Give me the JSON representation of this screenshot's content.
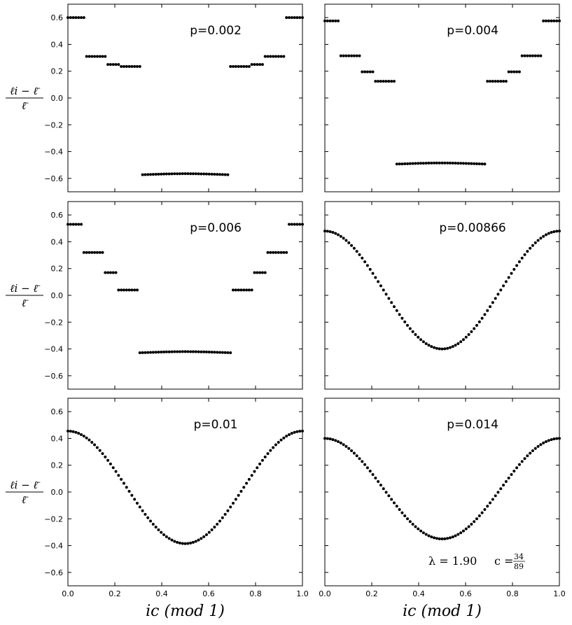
{
  "chart_data": {
    "type": "scatter",
    "layout": "3x2",
    "xlabel": "ic (mod 1)",
    "ylabel": "(ℓ_i − ℓ̄) / ℓ̄",
    "ylabel_parts": {
      "num": "ℓi − ℓ̄",
      "den": "ℓ̄"
    },
    "xlim": [
      0,
      1
    ],
    "ylim": [
      -0.7,
      0.7
    ],
    "x_ticks": [
      "0.0",
      "0.2",
      "0.4",
      "0.6",
      "0.8",
      "1.0"
    ],
    "y_ticks": [
      "0.6",
      "0.4",
      "0.2",
      "0.0",
      "−0.2",
      "−0.4",
      "−0.6"
    ],
    "annotation": {
      "lambda": "λ = 1.90",
      "c_label": "c =",
      "c_num": "34",
      "c_den": "89"
    },
    "panels": [
      {
        "label": "p=0.002",
        "levels": [
          {
            "x0": 0.0,
            "x1": 0.07,
            "y": 0.6
          },
          {
            "x0": 0.08,
            "x1": 0.16,
            "y": 0.31
          },
          {
            "x0": 0.17,
            "x1": 0.22,
            "y": 0.25
          },
          {
            "x0": 0.23,
            "x1": 0.31,
            "y": 0.235
          },
          {
            "x0": 0.315,
            "x1": 0.685,
            "y": -0.57
          },
          {
            "x0": 0.69,
            "x1": 0.77,
            "y": 0.235
          },
          {
            "x0": 0.78,
            "x1": 0.83,
            "y": 0.25
          },
          {
            "x0": 0.84,
            "x1": 0.92,
            "y": 0.31
          },
          {
            "x0": 0.93,
            "x1": 1.0,
            "y": 0.6
          }
        ]
      },
      {
        "label": "p=0.004",
        "levels": [
          {
            "x0": 0.0,
            "x1": 0.06,
            "y": 0.575
          },
          {
            "x0": 0.07,
            "x1": 0.15,
            "y": 0.315
          },
          {
            "x0": 0.16,
            "x1": 0.21,
            "y": 0.195
          },
          {
            "x0": 0.22,
            "x1": 0.3,
            "y": 0.125
          },
          {
            "x0": 0.305,
            "x1": 0.685,
            "y": -0.49
          },
          {
            "x0": 0.69,
            "x1": 0.77,
            "y": 0.125
          },
          {
            "x0": 0.78,
            "x1": 0.83,
            "y": 0.195
          },
          {
            "x0": 0.84,
            "x1": 0.92,
            "y": 0.315
          },
          {
            "x0": 0.93,
            "x1": 1.0,
            "y": 0.575
          }
        ]
      },
      {
        "label": "p=0.006",
        "levels": [
          {
            "x0": 0.0,
            "x1": 0.05,
            "y": 0.53
          },
          {
            "x0": 0.07,
            "x1": 0.15,
            "y": 0.32
          },
          {
            "x0": 0.16,
            "x1": 0.21,
            "y": 0.17
          },
          {
            "x0": 0.22,
            "x1": 0.295,
            "y": 0.04
          },
          {
            "x0": 0.3,
            "x1": 0.7,
            "y": -0.425
          },
          {
            "x0": 0.705,
            "x1": 0.78,
            "y": 0.04
          },
          {
            "x0": 0.79,
            "x1": 0.84,
            "y": 0.17
          },
          {
            "x0": 0.85,
            "x1": 0.93,
            "y": 0.32
          },
          {
            "x0": 0.94,
            "x1": 1.0,
            "y": 0.53
          }
        ]
      },
      {
        "label": "p=0.00866",
        "curve": {
          "amp": 0.44,
          "offset": 0.04
        }
      },
      {
        "label": "p=0.01",
        "curve": {
          "amp": 0.42,
          "offset": 0.035
        }
      },
      {
        "label": "p=0.014",
        "curve": {
          "amp": 0.375,
          "offset": 0.025
        }
      }
    ]
  }
}
